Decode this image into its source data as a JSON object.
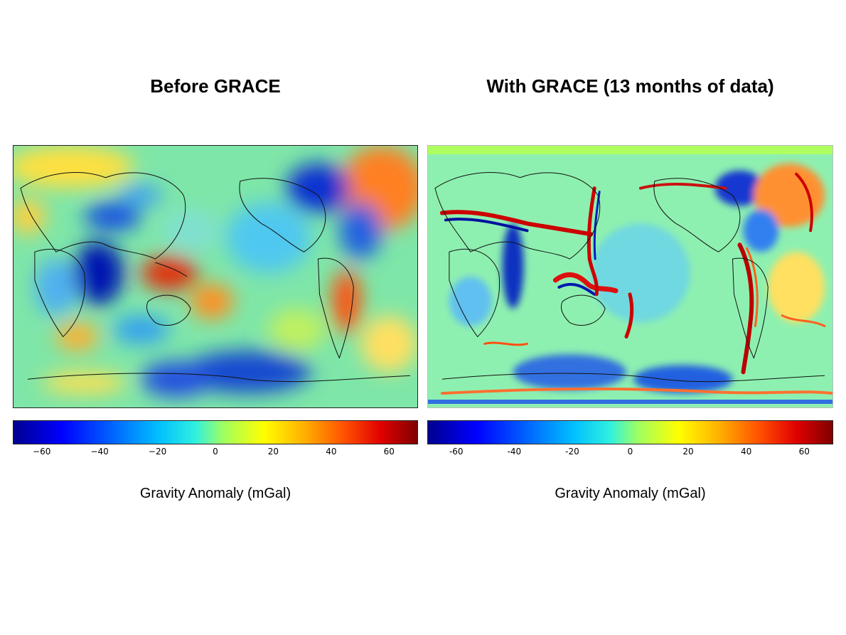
{
  "panels": [
    {
      "title": "Before GRACE",
      "colorbar": {
        "label": "Gravity Anomaly (mGal)",
        "ticks": [
          "−60",
          "−40",
          "−20",
          "0",
          "20",
          "40",
          "60"
        ],
        "tick_values": [
          -60,
          -40,
          -20,
          0,
          20,
          40,
          60
        ],
        "range": [
          -70,
          70
        ]
      }
    },
    {
      "title": "With GRACE (13 months of data)",
      "colorbar": {
        "label": "Gravity Anomaly (mGal)",
        "ticks": [
          "-60",
          "-40",
          "-20",
          "0",
          "20",
          "40",
          "60"
        ],
        "tick_values": [
          -60,
          -40,
          -20,
          0,
          20,
          40,
          60
        ],
        "range": [
          -70,
          70
        ]
      }
    }
  ],
  "colors": {
    "min": "#00008f",
    "neutral": "#30f0e0",
    "max": "#800000"
  }
}
